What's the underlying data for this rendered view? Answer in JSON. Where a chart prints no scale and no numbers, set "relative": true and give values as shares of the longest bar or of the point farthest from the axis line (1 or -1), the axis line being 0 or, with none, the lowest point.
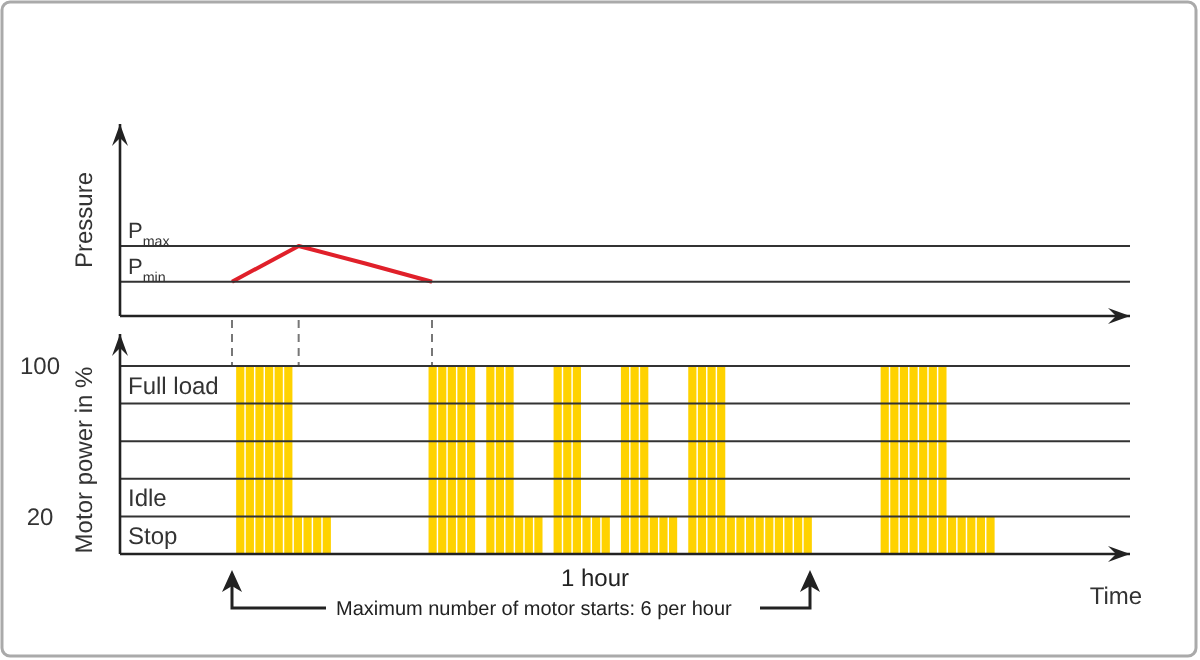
{
  "chart_data": [
    {
      "type": "line",
      "ylabel": "Pressure",
      "relative": true,
      "tick_labels": false,
      "grid": false,
      "marker": "none",
      "line_style": "solid",
      "categories": [
        null,
        null,
        null,
        null
      ],
      "series": [
        {
          "color": "#e0202a",
          "values": [
            0.49,
            1,
            0.75,
            0.49
          ]
        }
      ],
      "ref_lines": [
        {
          "axis": "y",
          "value": 1,
          "label": "P$_{max}$",
          "color": "#333333"
        },
        {
          "axis": "y",
          "value": 0.49,
          "label": "P$_{min}$",
          "color": "#333333"
        }
      ]
    },
    {
      "type": "bar",
      "ylabel": "Motor power in %",
      "xlabel": "Time",
      "ylim": [
        0,
        100
      ],
      "tick_labels": "y",
      "grid": "y",
      "yticks": [
        20,
        {
          "value": 40,
          "label": null
        },
        {
          "value": 60,
          "label": null
        },
        {
          "value": 80,
          "label": null
        },
        100
      ],
      "categories": [
        null,
        null,
        null,
        null,
        null,
        null,
        null,
        null,
        null,
        null,
        null,
        null,
        null,
        null,
        null,
        null,
        null,
        null,
        null,
        null,
        null,
        null,
        null,
        null,
        null,
        null,
        null,
        null,
        null,
        null,
        null,
        null,
        null,
        null,
        null,
        null,
        null,
        null,
        null,
        null,
        null,
        null,
        null,
        null,
        null,
        null,
        null,
        null,
        null,
        null,
        null,
        null,
        null,
        null,
        null,
        null,
        null,
        null,
        null,
        null,
        null,
        null,
        null,
        null,
        null,
        null,
        null,
        null,
        null,
        null,
        null,
        null,
        null,
        null,
        null,
        null,
        null,
        null,
        null,
        null,
        null,
        null,
        null,
        null,
        null,
        null,
        null,
        null,
        null,
        null,
        null,
        null,
        null,
        null,
        null,
        null,
        null,
        null,
        null,
        null,
        null,
        null,
        null,
        null,
        null
      ],
      "values": [
        null,
        null,
        null,
        null,
        null,
        null,
        null,
        null,
        null,
        null,
        null,
        null,
        100,
        100,
        100,
        100,
        100,
        100,
        20,
        20,
        20,
        20,
        null,
        null,
        null,
        null,
        null,
        null,
        null,
        null,
        null,
        null,
        100,
        100,
        100,
        100,
        100,
        null,
        100,
        100,
        100,
        20,
        20,
        20,
        null,
        100,
        100,
        100,
        20,
        20,
        20,
        null,
        100,
        100,
        100,
        20,
        20,
        20,
        null,
        100,
        100,
        100,
        100,
        20,
        20,
        20,
        20,
        20,
        20,
        20,
        20,
        20,
        null,
        null,
        null,
        null,
        null,
        null,
        null,
        100,
        100,
        100,
        100,
        100,
        100,
        100,
        20,
        20,
        20,
        20,
        20,
        null,
        null,
        null,
        null,
        null,
        null,
        null,
        null,
        null,
        null,
        null,
        null,
        null,
        null
      ],
      "color": "#ffd200",
      "annotations": [
        "Full load",
        "Idle",
        "Stop",
        "1 hour",
        "Maximum number of motor starts: 6 per hour"
      ]
    }
  ]
}
